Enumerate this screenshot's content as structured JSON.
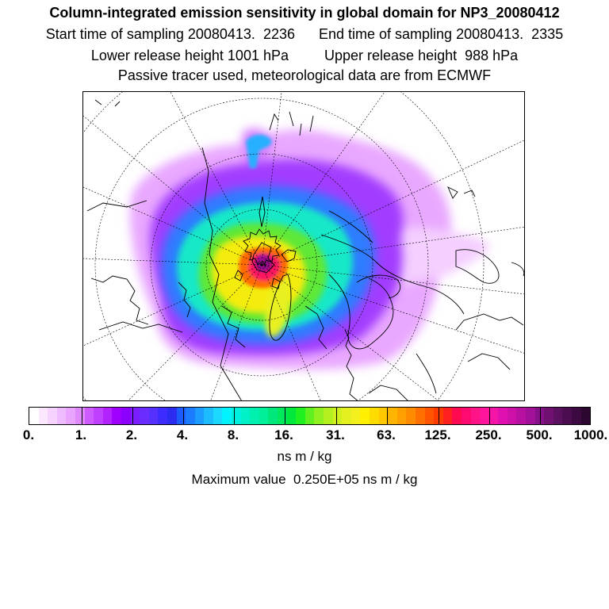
{
  "titles": {
    "line1": "Column-integrated emission sensitivity in global domain for NP3_20080412",
    "line2": "Start time of sampling 20080413.  2236      End time of sampling 20080413.  2335",
    "line3": "Lower release height 1001 hPa         Upper release height  988 hPa",
    "line4": "Passive tracer used, meteorological data are from ECMWF"
  },
  "colorbar": {
    "labels": [
      "0.",
      "1.",
      "2.",
      "4.",
      "8.",
      "16.",
      "31.",
      "63.",
      "125.",
      "250.",
      "500.",
      "1000."
    ],
    "colors": [
      "#ffffff",
      "#fbe8ff",
      "#f6d2ff",
      "#efbbff",
      "#e8a4ff",
      "#df8aff",
      "#cd5bff",
      "#c040ff",
      "#b223ff",
      "#a000ff",
      "#8c00ff",
      "#7a1eff",
      "#6a2cff",
      "#5530ff",
      "#3c2cff",
      "#2c2cf0",
      "#1c5cff",
      "#1c7cff",
      "#1c9cff",
      "#1cbcff",
      "#1cd8ff",
      "#00f4ff",
      "#00f0e0",
      "#00f0c8",
      "#00f0b0",
      "#00f09a",
      "#00e87c",
      "#00e85c",
      "#00e83c",
      "#20f020",
      "#60f020",
      "#90f020",
      "#b4f020",
      "#d0f020",
      "#e4f020",
      "#f4f020",
      "#fff000",
      "#ffdc00",
      "#ffc800",
      "#ffb400",
      "#ffa000",
      "#ff8c00",
      "#ff7000",
      "#ff5400",
      "#ff3c00",
      "#ff2020",
      "#ff0a50",
      "#ff0a70",
      "#ff1488",
      "#ff149c",
      "#f514a8",
      "#e010b0",
      "#cc10a8",
      "#b810a0",
      "#a01098",
      "#861088",
      "#701070",
      "#5c1060",
      "#4c0c50",
      "#3c0a40",
      "#2c0830"
    ],
    "unit": "ns m / kg"
  },
  "max_value": "Maximum value  0.250E+05 ns m / kg",
  "map": {
    "projection": "polar stereographic",
    "field": "emission sensitivity"
  }
}
